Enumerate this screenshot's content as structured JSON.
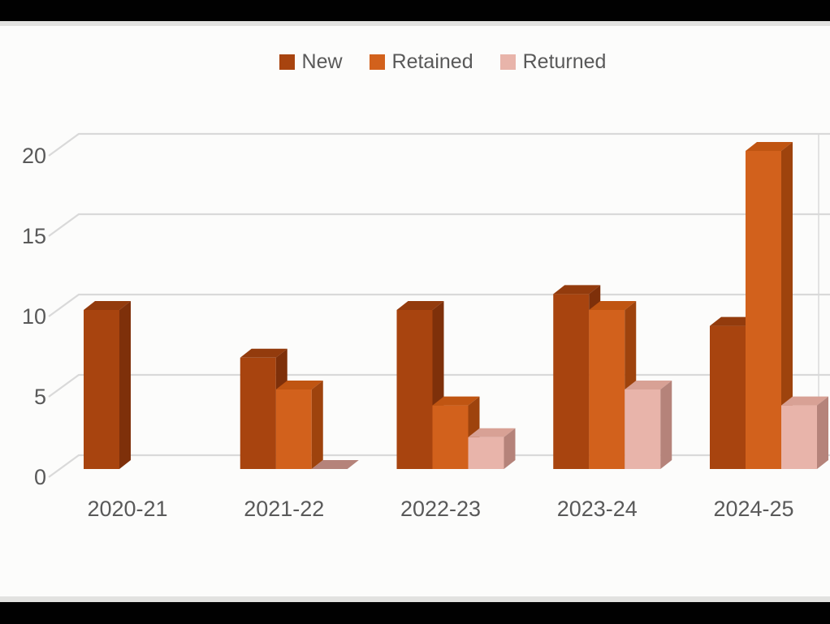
{
  "frame": {
    "letterbox_color": "#010101",
    "strip_color": "#E2E2E0",
    "canvas_color": "#FCFCFB"
  },
  "chart_data": {
    "type": "bar",
    "style_3d": true,
    "categories": [
      "2020-21",
      "2021-22",
      "2022-23",
      "2023-24",
      "2024-25"
    ],
    "series": [
      {
        "name": "New",
        "values": [
          10,
          7,
          10,
          11,
          9
        ],
        "color_front": "#A8440F",
        "color_top": "#933B0D",
        "color_side": "#7E300A"
      },
      {
        "name": "Retained",
        "values": [
          null,
          5,
          4,
          10,
          20
        ],
        "color_front": "#D2611C",
        "color_top": "#C05512",
        "color_side": "#9E430D"
      },
      {
        "name": "Returned",
        "values": [
          null,
          0,
          2,
          5,
          4
        ],
        "color_front": "#E8B4AA",
        "color_top": "#D8A195",
        "color_side": "#B5837A"
      }
    ],
    "ylim": [
      0,
      20
    ],
    "yticks": [
      0,
      5,
      10,
      15,
      20
    ],
    "grid": true,
    "legend_position": "top",
    "text_color": "#595959",
    "grid_color": "#D9D9D9"
  }
}
